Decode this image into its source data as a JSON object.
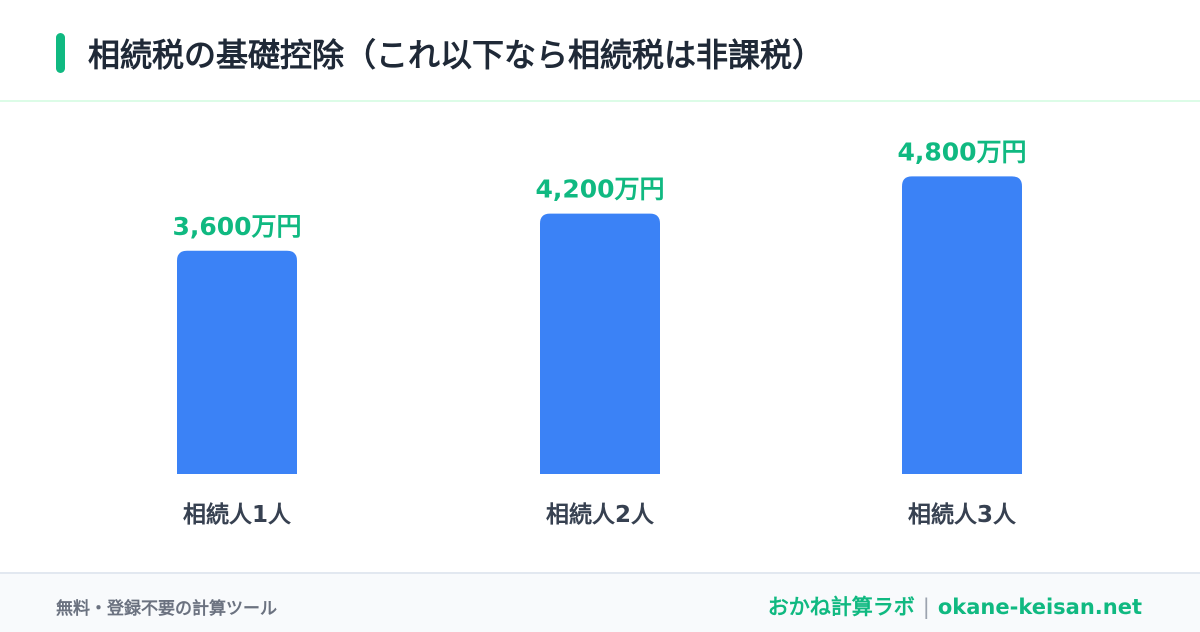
{
  "header": {
    "title": "相続税の基礎控除（これ以下なら相続税は非課税）"
  },
  "chart_data": {
    "type": "bar",
    "categories": [
      "相続人1人",
      "相続人2人",
      "相続人3人"
    ],
    "values": [
      3600,
      4200,
      4800
    ],
    "value_labels": [
      "3,600万円",
      "4,200万円",
      "4,800万円"
    ],
    "ylim": [
      0,
      6000
    ],
    "grid": false,
    "legend": "none"
  },
  "footer": {
    "tagline": "無料・登録不要の計算ツール",
    "brand": "おかね計算ラボ",
    "separator": "|",
    "domain": "okane-keisan.net"
  },
  "colors": {
    "accent": "#10b981",
    "bar": "#3b82f6",
    "title_text": "#1f2937",
    "category_text": "#374151",
    "footer_text": "#6b7280"
  }
}
